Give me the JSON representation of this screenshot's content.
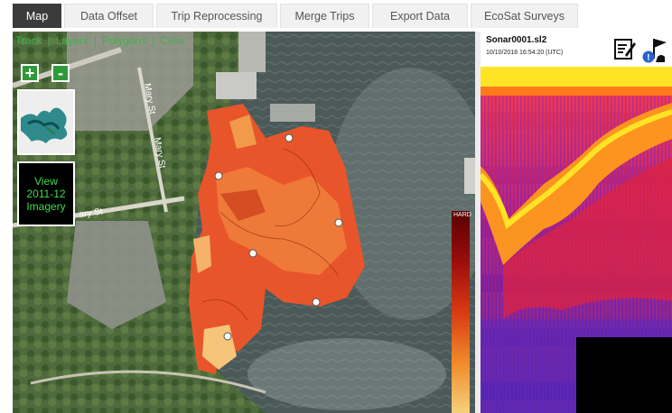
{
  "tabs": [
    {
      "label": "Map",
      "active": true
    },
    {
      "label": "Data Offset",
      "active": false
    },
    {
      "label": "Trip Reprocessing",
      "active": false
    },
    {
      "label": "Merge Trips",
      "active": false
    },
    {
      "label": "Export Data",
      "active": false
    },
    {
      "label": "EcoSat Surveys",
      "active": false
    }
  ],
  "map": {
    "links": [
      "Track",
      "Layers",
      "Polygons",
      "Clear"
    ],
    "separator": "|",
    "zoom_in": "+",
    "zoom_out": "-",
    "imagery_button": {
      "line1": "View",
      "line2": "2011-12",
      "line3": "Imagery"
    },
    "legend_label": "HARD",
    "street_labels": [
      "Mary St",
      "Mary St",
      "ary St"
    ]
  },
  "sonar": {
    "filename": "Sonar0001.sl2",
    "timestamp": "10/10/2018 16:54:20 (UTC)"
  },
  "colors": {
    "active_tab": "#3b3b3b",
    "link_green": "#3db24a",
    "button_green": "#2f9a3a",
    "imagery_text": "#3ddc4c"
  },
  "icons": [
    "edit-note-icon",
    "flag-info-icon"
  ]
}
